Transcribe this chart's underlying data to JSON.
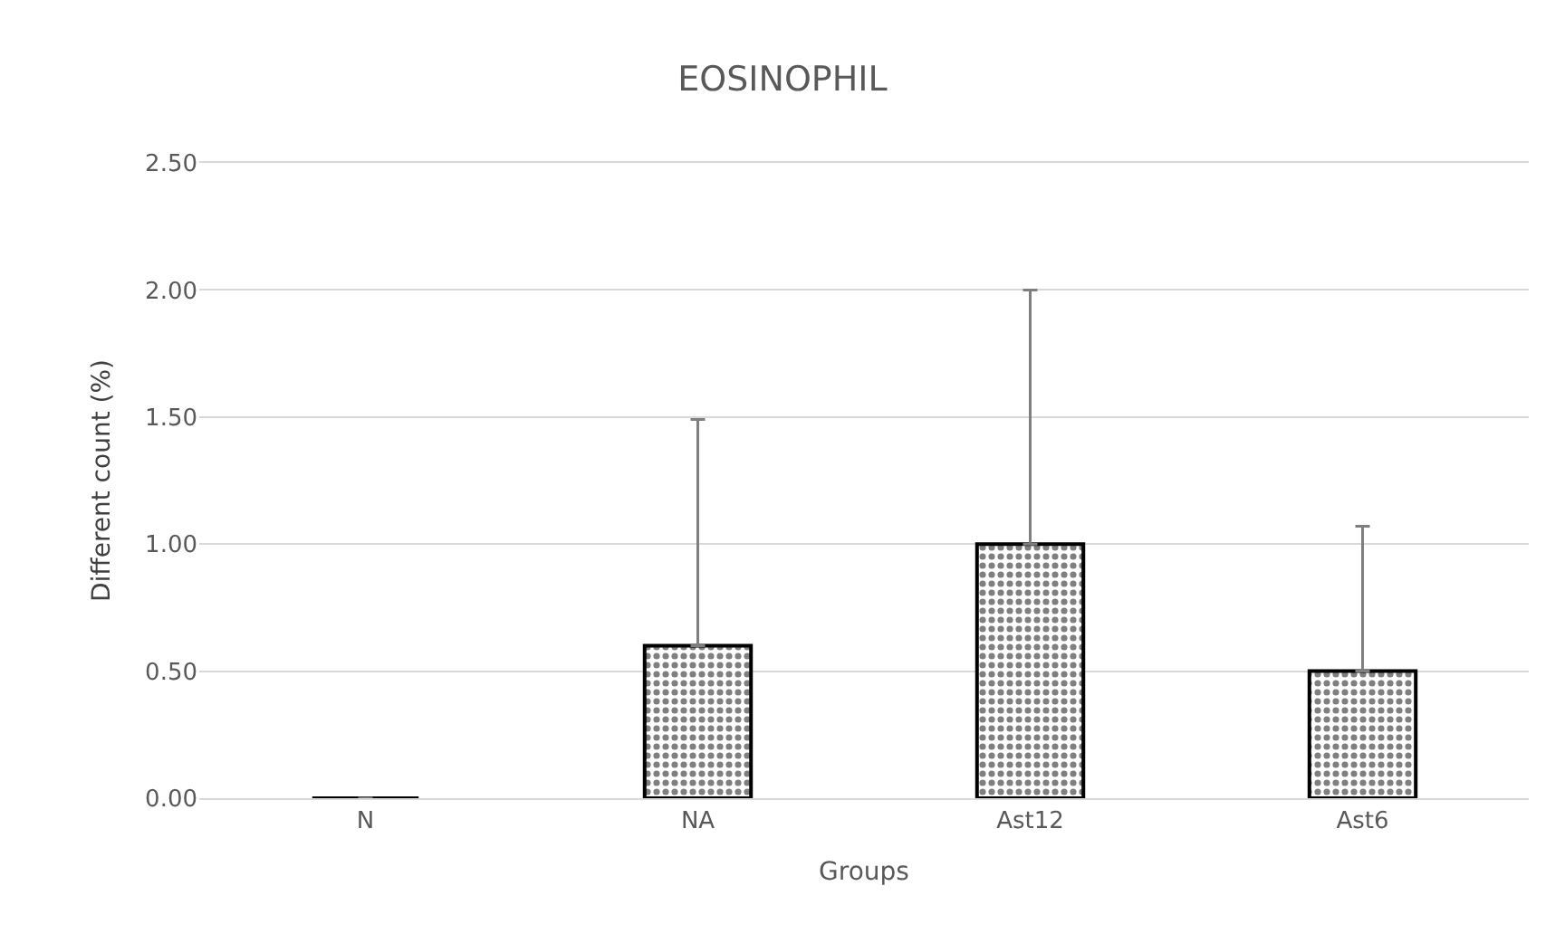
{
  "chart_data": {
    "type": "bar",
    "title": "EOSINOPHIL",
    "xlabel": "Groups",
    "ylabel": "Different count (%)",
    "categories": [
      "N",
      "NA",
      "Ast12",
      "Ast6"
    ],
    "values": [
      0,
      0.6,
      1.0,
      0.5
    ],
    "errors": [
      null,
      [
        0.6,
        1.49
      ],
      [
        1.0,
        2.0
      ],
      [
        0.5,
        1.07
      ]
    ],
    "color": "#000000",
    "ylim": [
      0,
      2.5
    ],
    "yticks": [
      {
        "value": 0,
        "label": "0.00"
      },
      {
        "value": 0.5,
        "label": "0.50"
      },
      {
        "value": 1,
        "label": "1.00"
      },
      {
        "value": 1.5,
        "label": "1.50"
      },
      {
        "value": 2,
        "label": "2.00"
      },
      {
        "value": 2.5,
        "label": "2.50"
      }
    ],
    "grid": "y",
    "legend": false
  }
}
